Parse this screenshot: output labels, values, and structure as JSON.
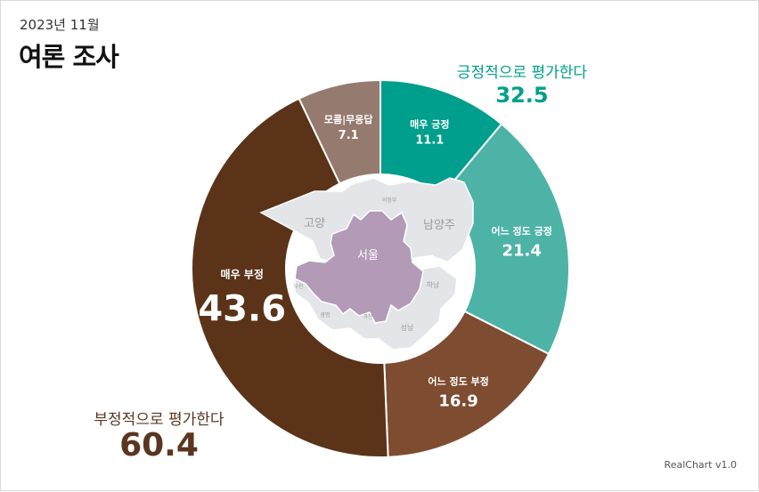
{
  "header": {
    "subtitle": "2023년 11월",
    "title": "여론 조사"
  },
  "groups": {
    "positive": {
      "label": "긍정적으로 평가한다",
      "value": "32.5",
      "color": "#00a08a"
    },
    "negative": {
      "label": "부정적으로 평가한다",
      "value": "60.4",
      "color": "#5b3520"
    }
  },
  "credits": "RealChart v1.0",
  "map": {
    "seoul": "서울",
    "goyang": "고양",
    "namyangju": "남양주",
    "uijeongbu": "의정부",
    "hanam": "하남",
    "seongnam": "성남",
    "bucheon": "부천",
    "gwangmyeong": "광명",
    "gwacheon": "과천"
  },
  "chart_data": {
    "type": "pie",
    "donut": true,
    "title": "여론 조사",
    "subtitle": "2023년 11월",
    "slices": [
      {
        "label": "매우 긍정",
        "value": 11.1,
        "color": "#009e8c"
      },
      {
        "label": "어느 정도 긍정",
        "value": 21.4,
        "color": "#4db3a6"
      },
      {
        "label": "어느 정도 부정",
        "value": 16.9,
        "color": "#7e4c31"
      },
      {
        "label": "매우 부정",
        "value": 43.6,
        "color": "#5a3319"
      },
      {
        "label": "모름|무응답",
        "value": 7.1,
        "color": "#957a6f"
      }
    ]
  }
}
